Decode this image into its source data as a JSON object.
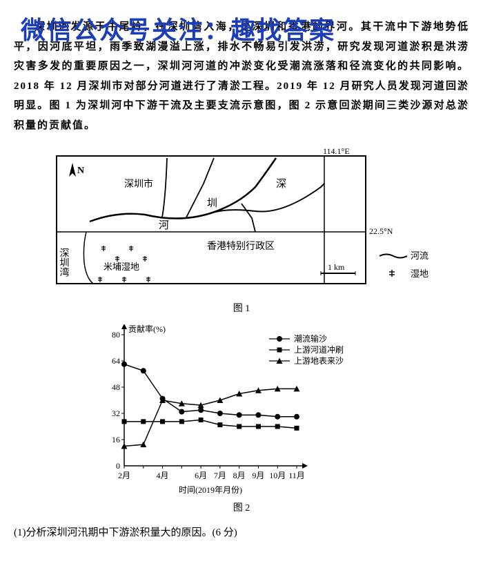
{
  "watermark": "微信公众号关注：趣找答案",
  "passage": "深圳河发源于牛尾岭，在深圳湾入海，是深圳和香港的界河。其干流中下游地势低平，因河底平坦，雨季致湖漫溢上涨，排水不畅易引发洪涝，研究发现河道淤积是洪涝灾害多发的重要原因之一，深圳河河道的冲淤变化受潮流涨落和径流变化的共同影响。2018 年 12 月深圳市对部分河道进行了清淤工程。2019 年 12 月研究人员发现河道回淤明显。图 1 为深圳河中下游干流及主要支流示意图，图 2 示意回淤期间三类沙源对总淤积量的贡献值。",
  "map": {
    "coord_east": "114.1°E",
    "coord_north": "22.5°N",
    "north_symbol": "N",
    "labels": {
      "shenzhen_city": "深圳市",
      "shenzhen_bay": "深圳湾",
      "shen": "深",
      "zhen": "圳",
      "he": "河",
      "hk": "香港特别行政区",
      "mipu": "米埔湿地",
      "scale": "1 km"
    },
    "legend": {
      "river": "河流",
      "wetland": "湿地"
    }
  },
  "caption1": "图 1",
  "caption2": "图 2",
  "chart": {
    "y_label": "贡献率(%)",
    "x_label": "时间(2019年月份)",
    "y_ticks": [
      0,
      16,
      32,
      48,
      64,
      80
    ],
    "x_ticks": [
      "2月",
      "",
      "4月",
      "",
      "6月",
      "7月",
      "8月",
      "9月",
      "10月",
      "11月"
    ],
    "x_positions": [
      0,
      1,
      2,
      3,
      4,
      5,
      6,
      7,
      8,
      9
    ],
    "legend": {
      "tidal": "潮流输沙",
      "upstream_scour": "上游河道冲刷",
      "upstream_surface": "上游地表来沙"
    },
    "colors": {
      "line": "#000000",
      "axis": "#000000",
      "bg": "#ffffff"
    },
    "series": {
      "tidal": [
        62,
        58,
        41,
        33,
        34,
        32,
        31,
        31,
        30,
        30
      ],
      "upstream_scour": [
        27,
        27,
        27,
        27,
        28,
        25,
        24,
        24,
        24,
        23
      ],
      "upstream_surface": [
        12,
        13,
        40,
        38,
        37,
        40,
        44,
        46,
        47,
        47
      ]
    }
  },
  "question": "(1)分析深圳河汛期中下游淤积量大的原因。(6 分)"
}
